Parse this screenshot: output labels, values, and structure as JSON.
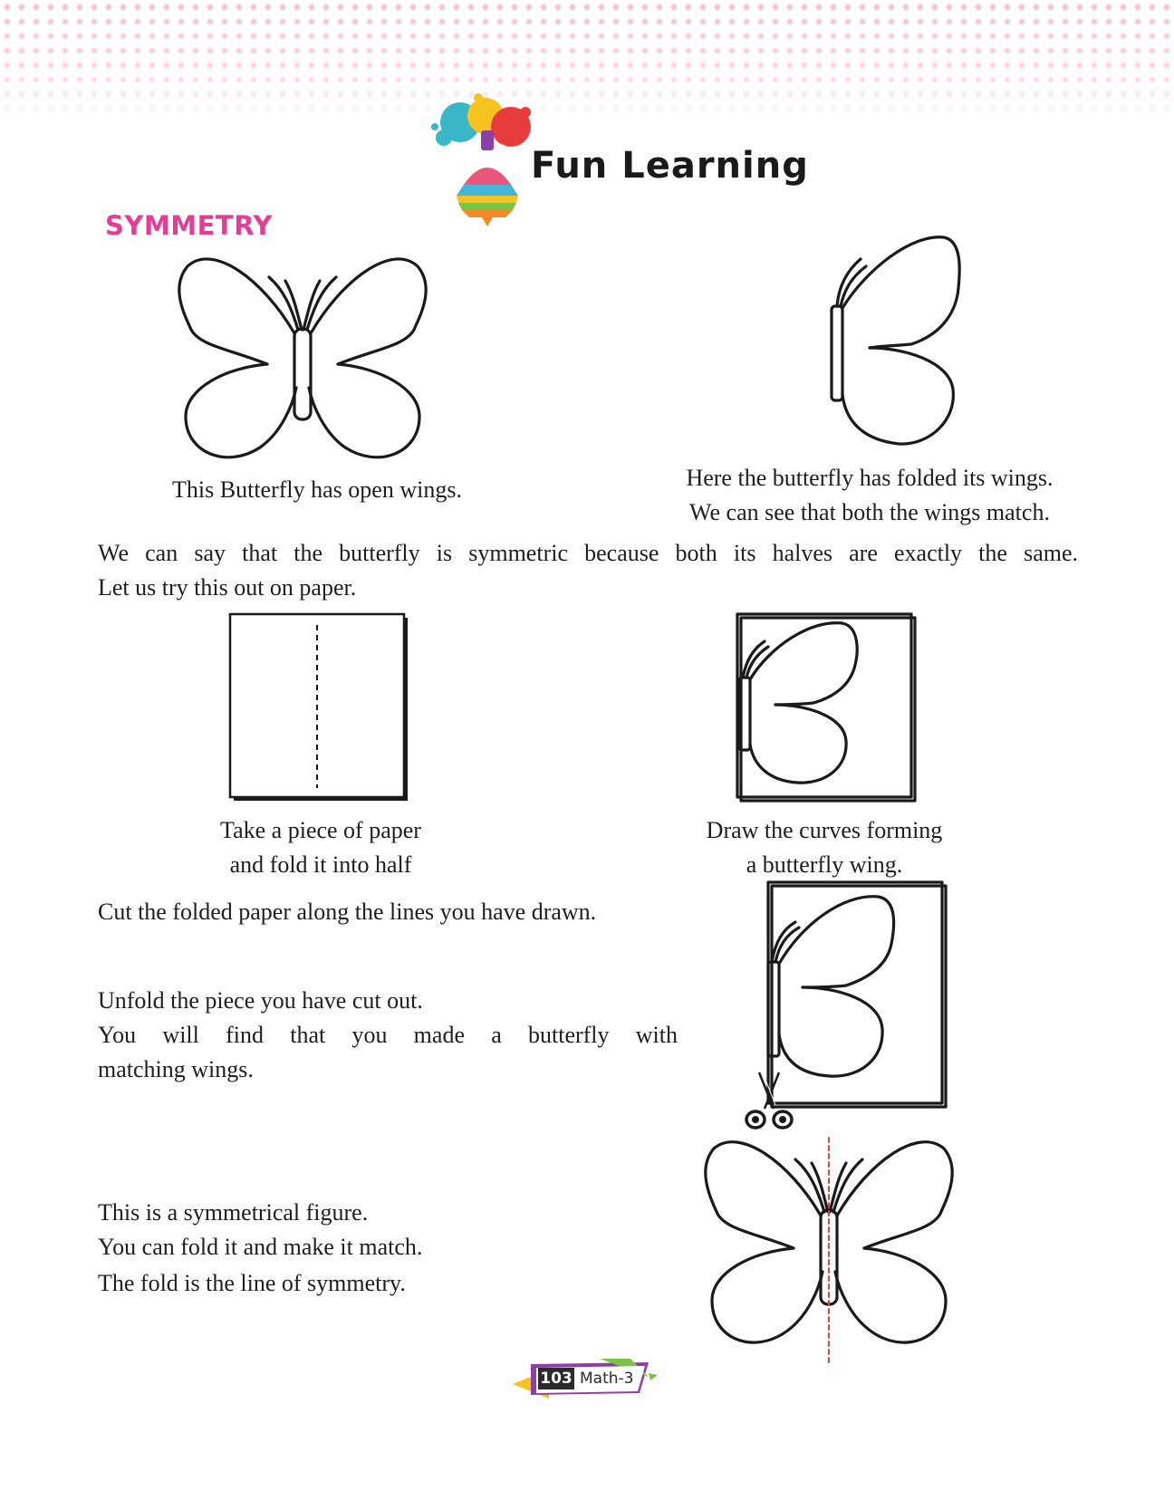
{
  "header": {
    "title": "Fun Learning"
  },
  "section_title": "SYMMETRY",
  "captions": {
    "open_wings": "This Butterfly has open wings.",
    "folded_line1": "Here the butterfly has folded its wings.",
    "folded_line2": "We can see that both the wings match."
  },
  "paragraph": {
    "line1": "We  can say that the butterfly is symmetric because both its halves are exactly the same.",
    "line2": "Let us try this out on paper."
  },
  "steps": {
    "fold_line1": "Take a piece of paper",
    "fold_line2": "and fold it into half",
    "draw_line1": "Draw the curves forming",
    "draw_line2": "a butterfly wing.",
    "cut": "Cut the folded paper along the lines you have drawn.",
    "unfold_line1": "Unfold the piece you have cut out.",
    "unfold_line2": "You  will  find  that  you  made  a  butterfly  with",
    "unfold_line3": "matching wings."
  },
  "conclusion": {
    "line1": "This is a symmetrical figure.",
    "line2": "You can fold it and make it match.",
    "line3": "The fold is the line of symmetry."
  },
  "footer": {
    "page_number": "103",
    "subject": "Math-3"
  },
  "colors": {
    "accent_pink": "#e43d96",
    "symmetry_line": "#e0443a",
    "text": "#1e1e1e"
  }
}
